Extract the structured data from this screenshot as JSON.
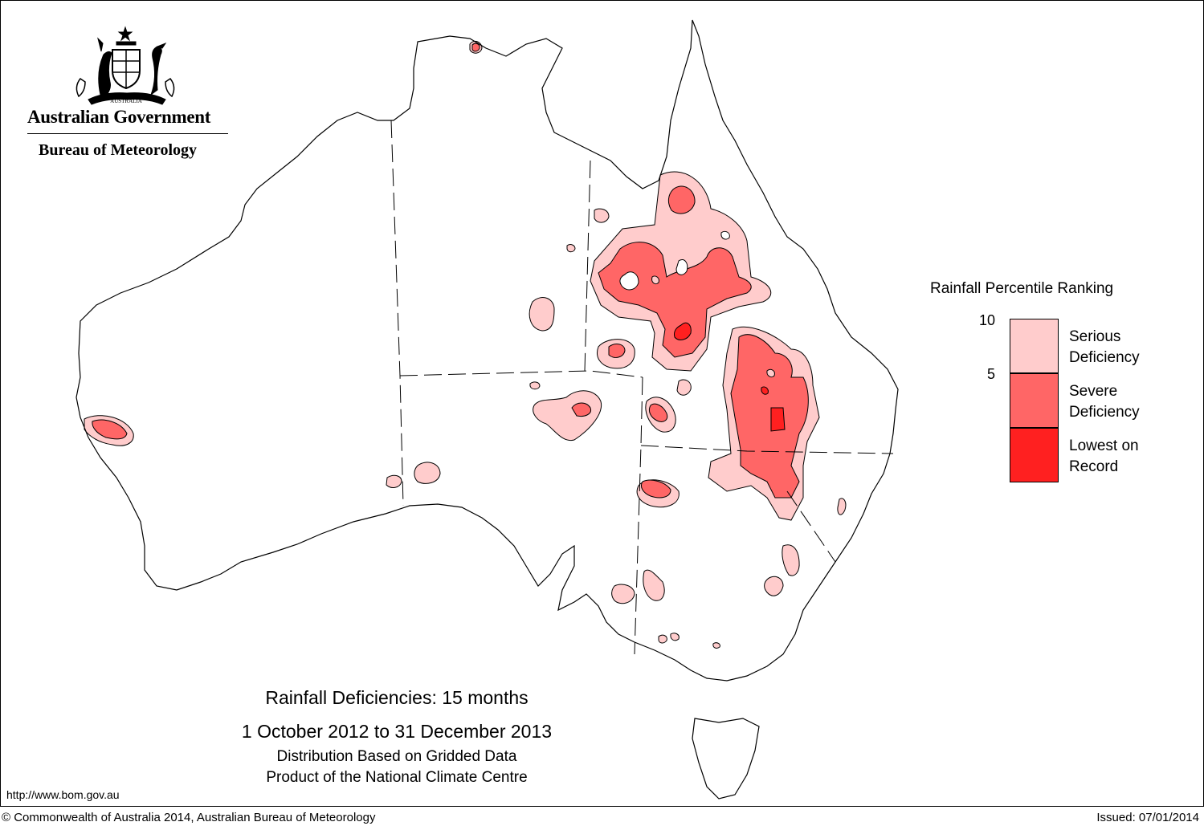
{
  "organisation": {
    "government": "Australian Government",
    "bureau": "Bureau of Meteorology",
    "crest_text": "AUSTRALIA"
  },
  "legend": {
    "title": "Rainfall Percentile Ranking",
    "tick_upper": "10",
    "tick_lower": "5",
    "items": [
      {
        "line1": "Serious",
        "line2": "Deficiency",
        "color": "#ffcccc"
      },
      {
        "line1": "Severe",
        "line2": "Deficiency",
        "color": "#ff6666"
      },
      {
        "line1": "Lowest on",
        "line2": "Record",
        "color": "#ff2020"
      }
    ]
  },
  "map": {
    "region": "Australia",
    "shading": [
      "serious-deficiency",
      "severe-deficiency",
      "lowest-on-record"
    ]
  },
  "title": {
    "line1": "Rainfall Deficiencies: 15 months",
    "line2": "1 October 2012 to 31 December 2013",
    "line3": "Distribution Based on Gridded Data",
    "line4": "Product of the National Climate Centre"
  },
  "footer": {
    "url": "http://www.bom.gov.au",
    "copyright": "© Commonwealth of Australia 2014, Australian Bureau of Meteorology",
    "issued": "Issued: 07/01/2014"
  }
}
